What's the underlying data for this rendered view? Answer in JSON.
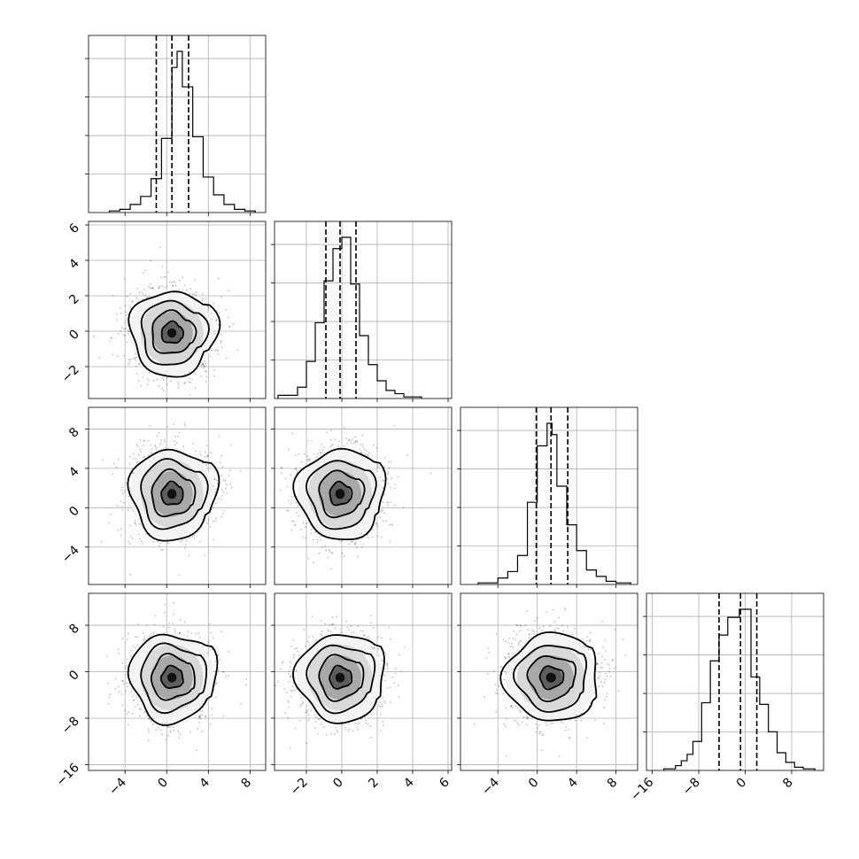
{
  "chart_data": {
    "type": "corner",
    "parameters": 4,
    "grid": true,
    "quantile_style": "dashed",
    "colors": {
      "line": "#000000",
      "grid": "#b0b0b0",
      "points": "#000000"
    },
    "axes": [
      {
        "index": 0,
        "range": [
          -7.5,
          9.5
        ],
        "ticks": [
          -4,
          0,
          4,
          8
        ],
        "tick_labels": [
          "−4",
          "0",
          "4",
          "8"
        ]
      },
      {
        "index": 1,
        "range": [
          -3.8,
          6.2
        ],
        "ticks": [
          -2,
          0,
          2,
          4,
          6
        ],
        "tick_labels": [
          "−2",
          "0",
          "2",
          "4",
          "6"
        ]
      },
      {
        "index": 2,
        "range": [
          -7.8,
          10.2
        ],
        "ticks": [
          -4,
          0,
          4,
          8
        ],
        "tick_labels": [
          "−4",
          "0",
          "4",
          "8"
        ]
      },
      {
        "index": 3,
        "range": [
          -17.0,
          13.5
        ],
        "ticks": [
          -16,
          -8,
          0,
          8
        ],
        "tick_labels": [
          "−16",
          "−8",
          "0",
          "8"
        ]
      }
    ],
    "marginals": [
      {
        "param": 0,
        "bin_edges": [
          -5.5,
          -4.5,
          -3.5,
          -2.5,
          -1.5,
          -0.5,
          0.5,
          1.0,
          1.5,
          2.5,
          3.5,
          4.5,
          5.5,
          6.5,
          7.5,
          8.5
        ],
        "counts": [
          0.01,
          0.02,
          0.05,
          0.1,
          0.21,
          0.46,
          0.9,
          1.0,
          0.78,
          0.47,
          0.22,
          0.11,
          0.05,
          0.02,
          0.01
        ],
        "quantiles": [
          -1.0,
          0.5,
          2.1
        ]
      },
      {
        "param": 1,
        "bin_edges": [
          -3.6,
          -2.5,
          -2.0,
          -1.5,
          -1.0,
          -0.5,
          0.0,
          0.5,
          1.0,
          1.5,
          2.0,
          2.5,
          3.0,
          3.5,
          4.5
        ],
        "counts": [
          0.02,
          0.07,
          0.23,
          0.47,
          0.73,
          0.93,
          1.0,
          0.71,
          0.39,
          0.21,
          0.11,
          0.05,
          0.03,
          0.01
        ],
        "quantiles": [
          -0.9,
          -0.1,
          0.8
        ]
      },
      {
        "param": 2,
        "bin_edges": [
          -6.0,
          -4.0,
          -3.0,
          -2.0,
          -1.0,
          0.0,
          1.0,
          1.5,
          2.0,
          3.0,
          4.0,
          5.0,
          6.0,
          7.0,
          8.0,
          9.5
        ],
        "counts": [
          0.01,
          0.04,
          0.08,
          0.18,
          0.51,
          0.86,
          1.0,
          0.93,
          0.61,
          0.37,
          0.21,
          0.09,
          0.05,
          0.02,
          0.01
        ],
        "quantiles": [
          -0.1,
          1.4,
          3.1
        ]
      },
      {
        "param": 3,
        "bin_edges": [
          -14.0,
          -12.0,
          -11.0,
          -10.0,
          -9.0,
          -7.5,
          -6.0,
          -4.5,
          -3.0,
          -1.0,
          1.0,
          2.5,
          4.0,
          5.5,
          7.0,
          8.5,
          10.0,
          12.0
        ],
        "counts": [
          0.01,
          0.03,
          0.06,
          0.1,
          0.18,
          0.42,
          0.68,
          0.84,
          0.95,
          1.0,
          0.58,
          0.41,
          0.24,
          0.11,
          0.05,
          0.02,
          0.01
        ],
        "quantiles": [
          -4.5,
          -0.8,
          2.0
        ]
      }
    ],
    "pairs": [
      {
        "x": 0,
        "y": 1,
        "mean": [
          0.5,
          -0.1
        ],
        "sd": [
          2.0,
          1.2
        ]
      },
      {
        "x": 0,
        "y": 2,
        "mean": [
          0.5,
          1.4
        ],
        "sd": [
          2.0,
          2.3
        ]
      },
      {
        "x": 1,
        "y": 2,
        "mean": [
          -0.1,
          1.4
        ],
        "sd": [
          1.2,
          2.3
        ]
      },
      {
        "x": 0,
        "y": 3,
        "mean": [
          0.5,
          -1.0
        ],
        "sd": [
          2.0,
          3.8
        ]
      },
      {
        "x": 1,
        "y": 3,
        "mean": [
          -0.1,
          -1.0
        ],
        "sd": [
          1.2,
          3.8
        ]
      },
      {
        "x": 2,
        "y": 3,
        "mean": [
          1.4,
          -1.0
        ],
        "sd": [
          2.3,
          3.8
        ]
      }
    ],
    "contour_levels_sigma": [
      0.5,
      1.0,
      1.5,
      2.0
    ]
  }
}
